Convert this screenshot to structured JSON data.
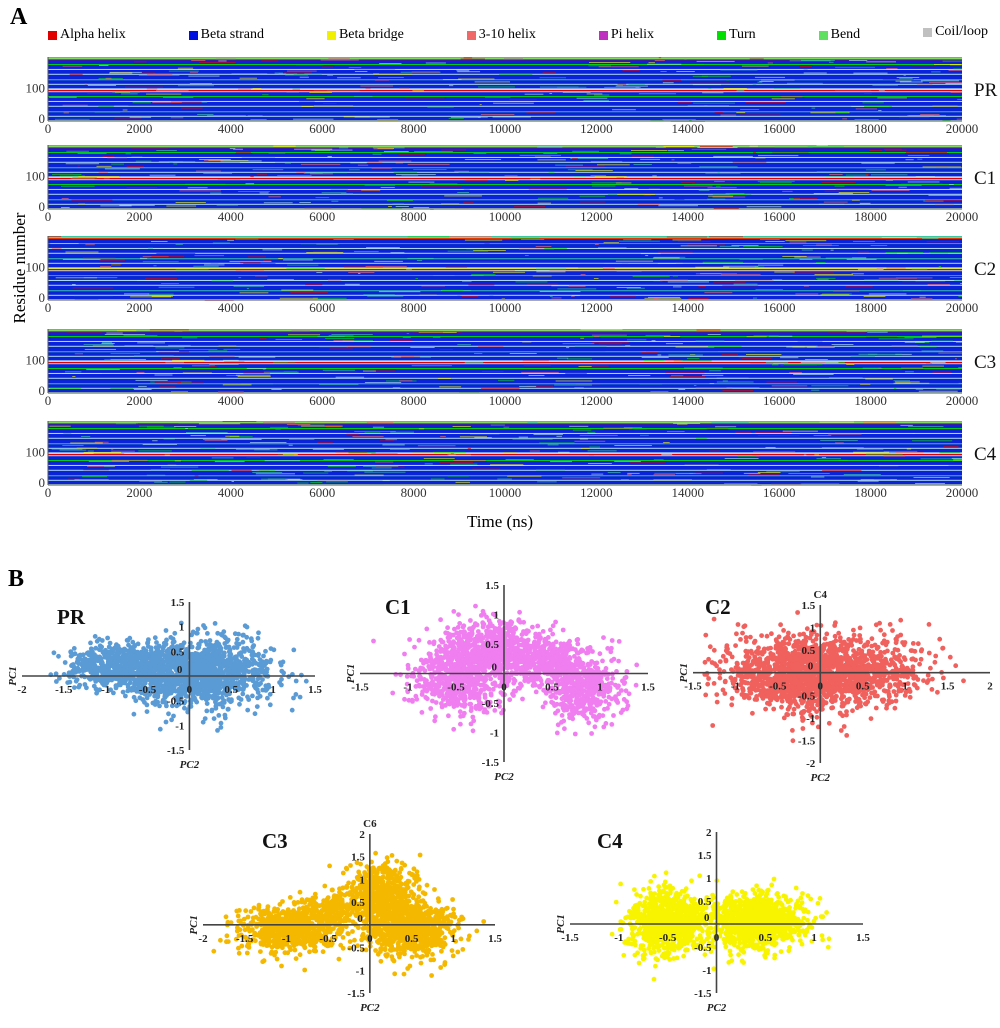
{
  "panel_a_label": "A",
  "panel_b_label": "B",
  "chart_data": [
    {
      "type": "heatmap",
      "xlabel": "Time (ns)",
      "ylabel": "Residue number",
      "xlim": [
        0,
        20000
      ],
      "ylim": [
        0,
        198
      ],
      "xticks": [
        "0",
        "2000",
        "4000",
        "6000",
        "8000",
        "10000",
        "12000",
        "14000",
        "16000",
        "18000",
        "20000"
      ],
      "yticks": [
        "0",
        "100"
      ],
      "legend": [
        {
          "key": "alpha",
          "label": "Alpha helix",
          "color": "#e00000"
        },
        {
          "key": "beta",
          "label": "Beta strand",
          "color": "#0010e0"
        },
        {
          "key": "bridge",
          "label": "Beta bridge",
          "color": "#f0f000"
        },
        {
          "key": "h310",
          "label": "3-10 helix",
          "color": "#f06868"
        },
        {
          "key": "pi",
          "label": "Pi helix",
          "color": "#c030c0"
        },
        {
          "key": "turn",
          "label": "Turn",
          "color": "#00e000"
        },
        {
          "key": "bend",
          "label": "Bend",
          "color": "#60e060"
        },
        {
          "key": "coil",
          "label": "Coil/loop",
          "color": "#c0c0c0"
        }
      ],
      "systems": [
        "PR",
        "C1",
        "C2",
        "C3",
        "C4"
      ],
      "dominant_bands": [
        [
          0,
          4,
          "coil"
        ],
        [
          4,
          14,
          "beta"
        ],
        [
          14,
          17,
          "coil"
        ],
        [
          17,
          28,
          "beta"
        ],
        [
          28,
          31,
          "bend"
        ],
        [
          31,
          45,
          "beta"
        ],
        [
          45,
          48,
          "coil"
        ],
        [
          48,
          60,
          "beta"
        ],
        [
          60,
          63,
          "coil"
        ],
        [
          63,
          75,
          "beta"
        ],
        [
          75,
          78,
          "turn"
        ],
        [
          78,
          90,
          "beta"
        ],
        [
          90,
          93,
          "coil"
        ],
        [
          93,
          97,
          "alpha"
        ],
        [
          97,
          99,
          "bridge"
        ],
        [
          99,
          102,
          "coil"
        ],
        [
          102,
          113,
          "beta"
        ],
        [
          113,
          116,
          "coil"
        ],
        [
          116,
          127,
          "beta"
        ],
        [
          127,
          130,
          "bend"
        ],
        [
          130,
          144,
          "beta"
        ],
        [
          144,
          147,
          "coil"
        ],
        [
          147,
          159,
          "beta"
        ],
        [
          159,
          162,
          "coil"
        ],
        [
          162,
          174,
          "beta"
        ],
        [
          174,
          177,
          "turn"
        ],
        [
          177,
          189,
          "beta"
        ],
        [
          189,
          192,
          "alpha"
        ],
        [
          192,
          194,
          "bridge"
        ],
        [
          194,
          198,
          "bend"
        ]
      ]
    },
    {
      "type": "scatter",
      "title": "PR",
      "xlabel": "PC2",
      "ylabel": "PC1",
      "top_label": "",
      "color": "#5b9bd5",
      "xlim": [
        -2,
        1.5
      ],
      "ylim": [
        -1.5,
        1.5
      ],
      "xticks": [
        "-2",
        "-1.5",
        "-1",
        "-0.5",
        "0",
        "0.5",
        "1",
        "1.5"
      ],
      "yticks": [
        "-1.5",
        "-1",
        "-0.5",
        "0",
        "0.5",
        "1",
        "1.5"
      ],
      "clusters": [
        {
          "cx": 0.1,
          "cy": 0.05,
          "sx": 0.42,
          "sy": 0.33,
          "n": 1400
        },
        {
          "cx": -0.85,
          "cy": 0.2,
          "sx": 0.3,
          "sy": 0.22,
          "n": 600
        }
      ]
    },
    {
      "type": "scatter",
      "title": "C1",
      "xlabel": "PC2",
      "ylabel": "PC1",
      "top_label": "",
      "color": "#f07ef0",
      "xlim": [
        -1.5,
        1.5
      ],
      "ylim": [
        -1.5,
        1.5
      ],
      "xticks": [
        "-1.5",
        "-1",
        "-0.5",
        "0",
        "0.5",
        "1",
        "1.5"
      ],
      "yticks": [
        "-1.5",
        "-1",
        "-0.5",
        "0",
        "0.5",
        "1",
        "1.5"
      ],
      "clusters": [
        {
          "cx": -0.45,
          "cy": -0.1,
          "sx": 0.28,
          "sy": 0.28,
          "n": 600
        },
        {
          "cx": -0.1,
          "cy": 0.4,
          "sx": 0.28,
          "sy": 0.25,
          "n": 600
        },
        {
          "cx": 0.5,
          "cy": 0.2,
          "sx": 0.25,
          "sy": 0.2,
          "n": 400
        },
        {
          "cx": 0.85,
          "cy": -0.3,
          "sx": 0.2,
          "sy": 0.25,
          "n": 400
        }
      ]
    },
    {
      "type": "scatter",
      "title": "C2",
      "xlabel": "PC2",
      "ylabel": "PC1",
      "top_label": "C4",
      "color": "#f0605d",
      "xlim": [
        -1.5,
        2
      ],
      "ylim": [
        -2,
        1.5
      ],
      "xticks": [
        "-1.5",
        "-1",
        "-0.5",
        "0",
        "0.5",
        "1",
        "1.5",
        "2"
      ],
      "yticks": [
        "-2",
        "-1.5",
        "-1",
        "-0.5",
        "0",
        "0.5",
        "1",
        "1.5"
      ],
      "clusters": [
        {
          "cx": 0,
          "cy": 0,
          "sx": 0.55,
          "sy": 0.4,
          "n": 1800
        }
      ]
    },
    {
      "type": "scatter",
      "title": "C3",
      "xlabel": "PC2",
      "ylabel": "PC1",
      "top_label": "C6",
      "color": "#f5b800",
      "xlim": [
        -2,
        1.5
      ],
      "ylim": [
        -1.5,
        2
      ],
      "xticks": [
        "-2",
        "-1.5",
        "-1",
        "-0.5",
        "0",
        "0.5",
        "1",
        "1.5"
      ],
      "yticks": [
        "-1.5",
        "-1",
        "-0.5",
        "0",
        "0.5",
        "1",
        "1.5",
        "2"
      ],
      "clusters": [
        {
          "cx": -0.95,
          "cy": -0.1,
          "sx": 0.3,
          "sy": 0.25,
          "n": 700
        },
        {
          "cx": -0.45,
          "cy": 0.35,
          "sx": 0.2,
          "sy": 0.2,
          "n": 200
        },
        {
          "cx": 0.15,
          "cy": 0.7,
          "sx": 0.2,
          "sy": 0.33,
          "n": 500
        },
        {
          "cx": 0.5,
          "cy": -0.1,
          "sx": 0.25,
          "sy": 0.3,
          "n": 800
        }
      ]
    },
    {
      "type": "scatter",
      "title": "C4",
      "xlabel": "PC2",
      "ylabel": "PC1",
      "top_label": "",
      "color": "#f8f400",
      "xlim": [
        -1.5,
        1.5
      ],
      "ylim": [
        -1.5,
        2
      ],
      "xticks": [
        "-1.5",
        "-1",
        "-0.5",
        "0",
        "0.5",
        "1",
        "1.5"
      ],
      "yticks": [
        "-1.5",
        "-1",
        "-0.5",
        "0",
        "0.5",
        "1",
        "1.5",
        "2"
      ],
      "clusters": [
        {
          "cx": -0.5,
          "cy": 0.05,
          "sx": 0.2,
          "sy": 0.35,
          "n": 800
        },
        {
          "cx": 0.4,
          "cy": 0.05,
          "sx": 0.25,
          "sy": 0.3,
          "n": 1000
        }
      ]
    }
  ]
}
